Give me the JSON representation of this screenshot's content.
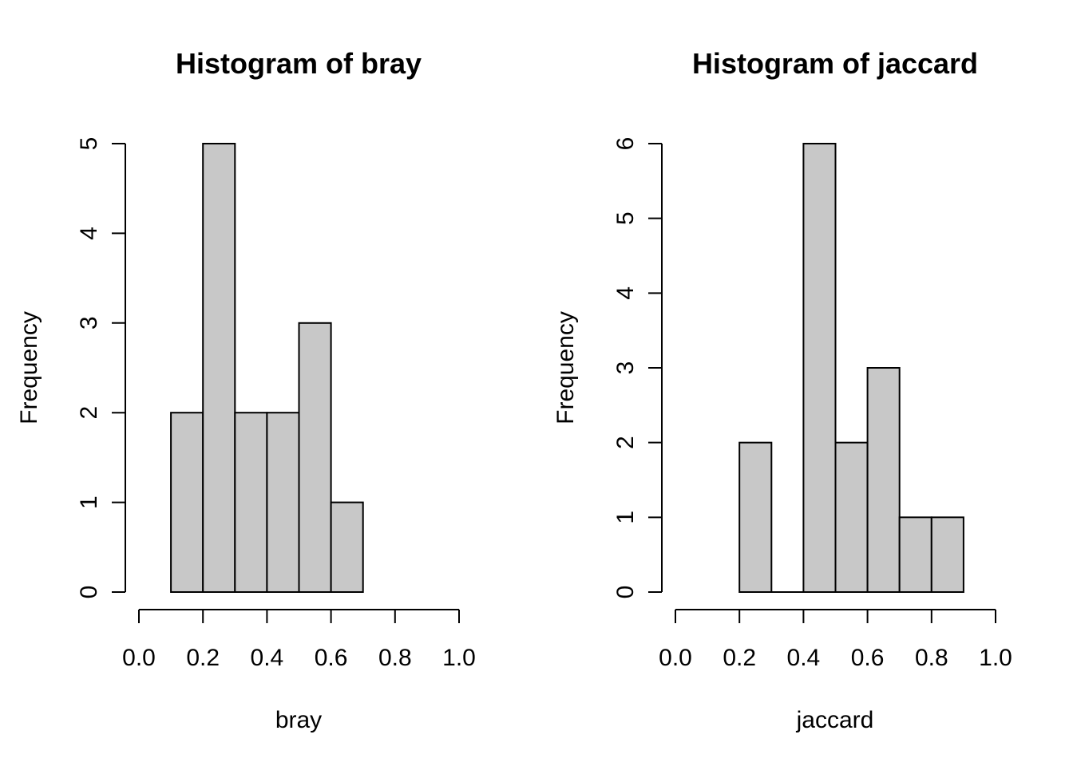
{
  "chart_data": [
    {
      "type": "bar",
      "title": "Histogram of bray",
      "xlabel": "bray",
      "ylabel": "Frequency",
      "bins": [
        {
          "from": 0.1,
          "to": 0.2,
          "count": 2
        },
        {
          "from": 0.2,
          "to": 0.3,
          "count": 5
        },
        {
          "from": 0.3,
          "to": 0.4,
          "count": 2
        },
        {
          "from": 0.4,
          "to": 0.5,
          "count": 2
        },
        {
          "from": 0.5,
          "to": 0.6,
          "count": 3
        },
        {
          "from": 0.6,
          "to": 0.7,
          "count": 1
        }
      ],
      "xlim": [
        0.0,
        1.0
      ],
      "ylim": [
        0,
        5
      ],
      "xticks": [
        "0.0",
        "0.2",
        "0.4",
        "0.6",
        "0.8",
        "1.0"
      ],
      "yticks": [
        "0",
        "1",
        "2",
        "3",
        "4",
        "5"
      ],
      "bar_color": "#c8c8c8",
      "grid": false
    },
    {
      "type": "bar",
      "title": "Histogram of jaccard",
      "xlabel": "jaccard",
      "ylabel": "Frequency",
      "bins": [
        {
          "from": 0.2,
          "to": 0.3,
          "count": 2
        },
        {
          "from": 0.3,
          "to": 0.4,
          "count": 0
        },
        {
          "from": 0.4,
          "to": 0.5,
          "count": 6
        },
        {
          "from": 0.5,
          "to": 0.6,
          "count": 2
        },
        {
          "from": 0.6,
          "to": 0.7,
          "count": 3
        },
        {
          "from": 0.7,
          "to": 0.8,
          "count": 1
        },
        {
          "from": 0.8,
          "to": 0.9,
          "count": 1
        }
      ],
      "xlim": [
        0.0,
        1.0
      ],
      "ylim": [
        0,
        6
      ],
      "xticks": [
        "0.0",
        "0.2",
        "0.4",
        "0.6",
        "0.8",
        "1.0"
      ],
      "yticks": [
        "0",
        "1",
        "2",
        "3",
        "4",
        "5",
        "6"
      ],
      "bar_color": "#c8c8c8",
      "grid": false
    }
  ]
}
